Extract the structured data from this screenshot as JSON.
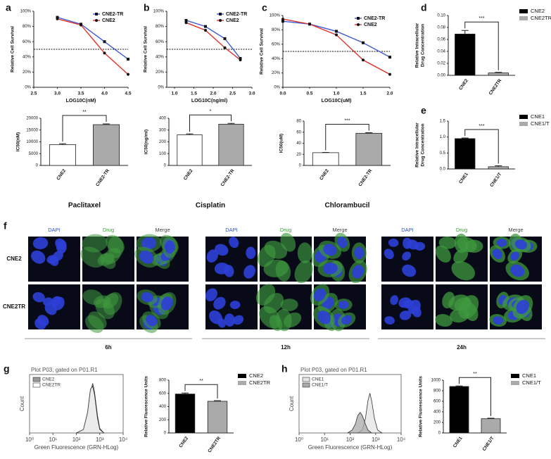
{
  "panel_labels": [
    "a",
    "b",
    "c",
    "d",
    "e",
    "f",
    "g",
    "h"
  ],
  "chart_data": [
    {
      "type": "line",
      "ylabel": "Relative Cell Survival",
      "xlabel": "LOG10C(nM)",
      "xlim": [
        2.5,
        4.5
      ],
      "xticks": [
        2.5,
        {
          "value": 3,
          "label": "3.0"
        },
        3.5,
        {
          "value": 4,
          "label": "4.0"
        },
        4.5
      ],
      "ylim": [
        0,
        100
      ],
      "yticks": [
        {
          "value": 0,
          "label": "0%"
        },
        {
          "value": 20,
          "label": "20%"
        },
        {
          "value": 40,
          "label": "40%"
        },
        {
          "value": 60,
          "label": "60%"
        },
        {
          "value": 80,
          "label": "80%"
        },
        {
          "value": 100,
          "label": "100%"
        }
      ],
      "reference_line": 50,
      "legend_position": "upper right",
      "series": [
        {
          "name": "CNE2-TR",
          "color": "#3d5bd9",
          "marker": "square",
          "x": [
            3,
            3.5,
            4,
            4.5
          ],
          "values": [
            92,
            83,
            60,
            37
          ]
        },
        {
          "name": "CNE2",
          "color": "#e0302a",
          "marker": "circle",
          "x": [
            3,
            3.5,
            4,
            4.5
          ],
          "values": [
            90,
            82,
            45,
            17
          ]
        }
      ]
    },
    {
      "type": "bar",
      "categories": [
        "CNE2",
        "CNE2-TR"
      ],
      "values": [
        8800,
        17300
      ],
      "errors": [
        400,
        300
      ],
      "colors": [
        "#ffffff",
        "#aaaaaa"
      ],
      "ylabel": "IC50(nM)",
      "ylim": [
        0,
        20000
      ],
      "yticks": [
        0,
        5000,
        10000,
        15000,
        20000
      ],
      "significance": "**",
      "xlabel": "Paclitaxel"
    },
    {
      "type": "line",
      "ylabel": "Relative Cell Survival",
      "xlabel": "LOG10C(ng/ml)",
      "xlim": [
        0.8,
        3.0
      ],
      "xticks": [
        {
          "value": 1,
          "label": "1.0"
        },
        1.5,
        {
          "value": 2,
          "label": "2.0"
        },
        2.5,
        {
          "value": 3,
          "label": "3.0"
        }
      ],
      "ylim": [
        0,
        100
      ],
      "yticks": [
        {
          "value": 0,
          "label": "0%"
        },
        {
          "value": 20,
          "label": "20%"
        },
        {
          "value": 40,
          "label": "40%"
        },
        {
          "value": 60,
          "label": "60%"
        },
        {
          "value": 80,
          "label": "80%"
        },
        {
          "value": 100,
          "label": "100%"
        }
      ],
      "reference_line": 50,
      "legend_position": "upper right",
      "series": [
        {
          "name": "CNE2-TR",
          "color": "#3d5bd9",
          "marker": "square",
          "x": [
            1.3,
            1.8,
            2.3,
            2.7
          ],
          "values": [
            88,
            80,
            64,
            38
          ]
        },
        {
          "name": "CNE2",
          "color": "#e0302a",
          "marker": "circle",
          "x": [
            1.3,
            1.8,
            2.3,
            2.7
          ],
          "values": [
            85,
            75,
            52,
            36
          ]
        }
      ]
    },
    {
      "type": "bar",
      "categories": [
        "CNE2",
        "CNE2-TR"
      ],
      "values": [
        260,
        350
      ],
      "errors": [
        8,
        7
      ],
      "colors": [
        "#ffffff",
        "#aaaaaa"
      ],
      "ylabel": "IC50(ng/ml)",
      "ylim": [
        0,
        400
      ],
      "yticks": [
        0,
        100,
        200,
        300,
        400
      ],
      "significance": "*",
      "xlabel": "Cisplatin"
    },
    {
      "type": "line",
      "ylabel": "Relative Cell Survival",
      "xlabel": "LOG10C(uM)",
      "xlim": [
        0,
        2
      ],
      "xticks": [
        {
          "value": 0,
          "label": "0.0"
        },
        0.5,
        {
          "value": 1,
          "label": "1.0"
        },
        1.5,
        {
          "value": 2,
          "label": "2.0"
        }
      ],
      "ylim": [
        0,
        100
      ],
      "yticks": [
        {
          "value": 0,
          "label": "0%"
        },
        {
          "value": 20,
          "label": "20%"
        },
        {
          "value": 40,
          "label": "40%"
        },
        {
          "value": 60,
          "label": "60%"
        },
        {
          "value": 80,
          "label": "80%"
        },
        {
          "value": 100,
          "label": "100%"
        }
      ],
      "reference_line": 50,
      "legend_position": "upper right",
      "series": [
        {
          "name": "CNE2-TR",
          "color": "#3d5bd9",
          "marker": "square",
          "x": [
            0,
            0.5,
            1,
            1.5,
            2
          ],
          "values": [
            92,
            88,
            78,
            62,
            42
          ]
        },
        {
          "name": "CNE2",
          "color": "#e0302a",
          "marker": "circle",
          "x": [
            0,
            0.5,
            1,
            1.5,
            2
          ],
          "values": [
            95,
            88,
            73,
            38,
            18
          ]
        }
      ]
    },
    {
      "type": "bar",
      "categories": [
        "CNE2",
        "CNE2-TR"
      ],
      "values": [
        23,
        58
      ],
      "errors": [
        0.5,
        1
      ],
      "colors": [
        "#ffffff",
        "#aaaaaa"
      ],
      "ylabel": "IC50(uM)",
      "ylim": [
        0,
        80
      ],
      "yticks": [
        0,
        20,
        40,
        60,
        80
      ],
      "significance": "***",
      "xlabel": "Chlorambucil"
    },
    {
      "type": "bar",
      "categories": [
        "CNE2",
        "CNE2TR"
      ],
      "values": [
        0.069,
        0.004
      ],
      "errors": [
        0.006,
        0.001
      ],
      "colors": [
        "#000000",
        "#aaaaaa"
      ],
      "ylabel": [
        "Relative Intracellular",
        "Drug Concentration"
      ],
      "ylim": [
        0,
        0.1
      ],
      "yticks": [
        {
          "value": 0,
          "label": "0.00"
        },
        0.02,
        0.04,
        0.06,
        0.08,
        {
          "value": 0.1,
          "label": "0.10"
        }
      ],
      "significance": "***",
      "legend_position": "right"
    },
    {
      "type": "bar",
      "categories": [
        "CNE1",
        "CNE1/T"
      ],
      "values": [
        0.95,
        0.07
      ],
      "errors": [
        0.02,
        0.03
      ],
      "colors": [
        "#000000",
        "#aaaaaa"
      ],
      "ylabel": [
        "Relative Intracellular",
        "Drug Concentration"
      ],
      "ylim": [
        0,
        1.5
      ],
      "yticks": [
        {
          "value": 0,
          "label": "0.0"
        },
        0.5,
        {
          "value": 1,
          "label": "1.0"
        },
        1.5
      ],
      "significance": "***",
      "legend_position": "right"
    },
    {
      "type": "flow",
      "title": "Plot P03, gated on P01.R1",
      "ylabel": "Count",
      "xlabel": "Green Fluorescence (GRN-HLog)",
      "log_x": true,
      "xlim": [
        1,
        10000
      ],
      "xticks": [
        {
          "value": 1,
          "label": "10⁰"
        },
        {
          "value": 10,
          "label": "10¹"
        },
        {
          "value": 100,
          "label": "10²"
        },
        {
          "value": 1000,
          "label": "10³"
        },
        {
          "value": 10000,
          "label": "10⁴"
        }
      ],
      "ylim": [
        0,
        100
      ],
      "legend_position": "upper left",
      "series": [
        {
          "name": "CNE2",
          "color": "#999999",
          "x": [
            100,
            200,
            300,
            400,
            500,
            600,
            800,
            1000,
            1500
          ],
          "values": [
            0,
            5,
            30,
            70,
            85,
            70,
            30,
            8,
            0
          ]
        },
        {
          "name": "CNE2TR",
          "color": "#ffffff",
          "x": [
            100,
            200,
            300,
            400,
            500,
            600,
            800,
            1000,
            1500
          ],
          "values": [
            0,
            6,
            35,
            75,
            80,
            65,
            25,
            6,
            0
          ]
        }
      ]
    },
    {
      "type": "bar",
      "categories": [
        "CNE2",
        "CNE2TR"
      ],
      "values": [
        590,
        480
      ],
      "errors": [
        15,
        10
      ],
      "colors": [
        "#000000",
        "#aaaaaa"
      ],
      "ylabel": "Relative Fluorescence Units",
      "ylim": [
        0,
        800
      ],
      "yticks": [
        0,
        200,
        400,
        600,
        800
      ],
      "significance": "**",
      "legend_position": "right"
    },
    {
      "type": "flow",
      "title": "Plot P03, gated on P01.R1",
      "ylabel": "Count",
      "xlabel": "Green Fluorescence (GRN-HLog)",
      "log_x": true,
      "xlim": [
        1,
        10000
      ],
      "xticks": [
        {
          "value": 1,
          "label": "10⁰"
        },
        {
          "value": 10,
          "label": "10¹"
        },
        {
          "value": 100,
          "label": "10²"
        },
        {
          "value": 1000,
          "label": "10³"
        },
        {
          "value": 10000,
          "label": "10⁴"
        }
      ],
      "ylim": [
        0,
        100
      ],
      "legend_position": "upper left",
      "series": [
        {
          "name": "CNE1",
          "color": "#e4e4e4",
          "x": [
            200,
            300,
            400,
            500,
            600,
            700,
            900,
            1200,
            1800
          ],
          "values": [
            0,
            5,
            25,
            55,
            68,
            55,
            25,
            5,
            0
          ]
        },
        {
          "name": "CNE1/T",
          "color": "#aaaaaa",
          "x": [
            80,
            120,
            160,
            200,
            250,
            300,
            400,
            500,
            700
          ],
          "values": [
            0,
            5,
            15,
            30,
            35,
            30,
            15,
            5,
            0
          ]
        }
      ]
    },
    {
      "type": "bar",
      "categories": [
        "CNE1",
        "CNE1/T"
      ],
      "values": [
        880,
        270
      ],
      "errors": [
        10,
        10
      ],
      "colors": [
        "#000000",
        "#aaaaaa"
      ],
      "ylabel": "Relative Fluorescence Units",
      "ylim": [
        0,
        1000
      ],
      "yticks": [
        0,
        200,
        400,
        600,
        800,
        1000
      ],
      "significance": "**",
      "legend_position": "right"
    }
  ],
  "panel_f": {
    "channels": [
      "DAPI",
      "Drug",
      "Merge"
    ],
    "rows": [
      "CNE2",
      "CNE2TR"
    ],
    "times": [
      "6h",
      "12h",
      "24h"
    ]
  }
}
